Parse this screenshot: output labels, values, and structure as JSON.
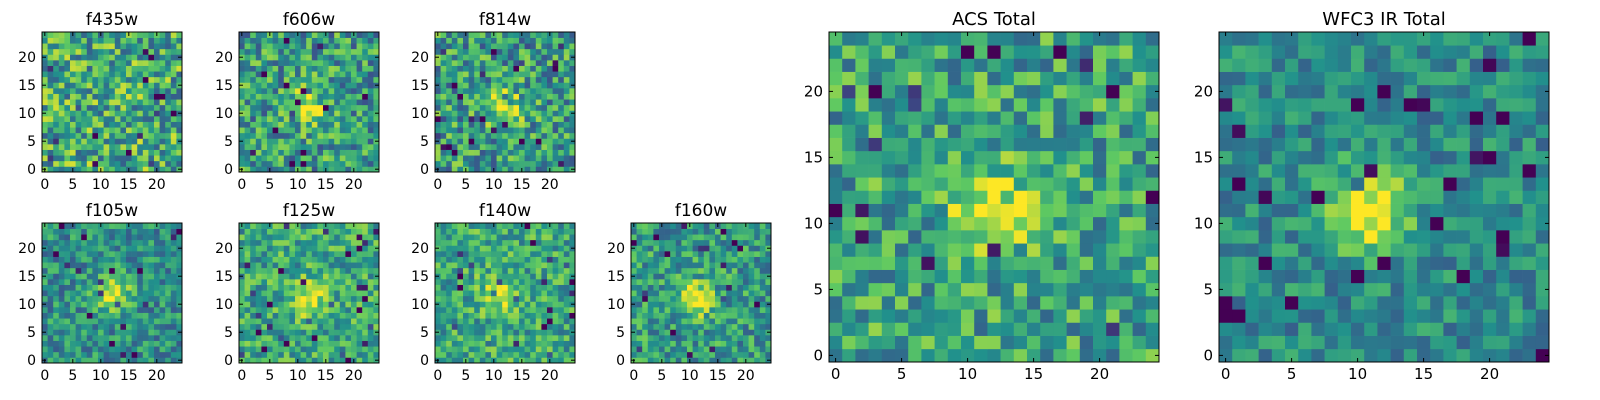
{
  "figure": {
    "colormap": "viridis",
    "colormap_stops": [
      "#440154",
      "#3b528b",
      "#21918c",
      "#5ec962",
      "#fde725"
    ]
  },
  "chart_data": [
    {
      "type": "heatmap",
      "title": "f435w",
      "grid_size": 25,
      "xlim": [
        -0.5,
        24.5
      ],
      "ylim": [
        -0.5,
        24.5
      ],
      "xticks": [
        0,
        5,
        10,
        15,
        20
      ],
      "yticks": [
        0,
        5,
        10,
        15,
        20
      ],
      "source_center": null,
      "source_strength": 0.0,
      "noise_level": 0.32,
      "base_level": 0.62,
      "seed": 435
    },
    {
      "type": "heatmap",
      "title": "f606w",
      "grid_size": 25,
      "xlim": [
        -0.5,
        24.5
      ],
      "ylim": [
        -0.5,
        24.5
      ],
      "xticks": [
        0,
        5,
        10,
        15,
        20
      ],
      "yticks": [
        0,
        5,
        10,
        15,
        20
      ],
      "source_center": [
        12,
        11
      ],
      "source_strength": 0.45,
      "noise_level": 0.3,
      "base_level": 0.55,
      "seed": 606
    },
    {
      "type": "heatmap",
      "title": "f814w",
      "grid_size": 25,
      "xlim": [
        -0.5,
        24.5
      ],
      "ylim": [
        -0.5,
        24.5
      ],
      "xticks": [
        0,
        5,
        10,
        15,
        20
      ],
      "yticks": [
        0,
        5,
        10,
        15,
        20
      ],
      "source_center": [
        12,
        11
      ],
      "source_strength": 0.45,
      "noise_level": 0.3,
      "base_level": 0.55,
      "seed": 814
    },
    {
      "type": "heatmap",
      "title": "f105w",
      "grid_size": 25,
      "xlim": [
        -0.5,
        24.5
      ],
      "ylim": [
        -0.5,
        24.5
      ],
      "xticks": [
        0,
        5,
        10,
        15,
        20
      ],
      "yticks": [
        0,
        5,
        10,
        15,
        20
      ],
      "source_center": [
        12,
        12
      ],
      "source_strength": 0.5,
      "noise_level": 0.22,
      "base_level": 0.5,
      "seed": 105
    },
    {
      "type": "heatmap",
      "title": "f125w",
      "grid_size": 25,
      "xlim": [
        -0.5,
        24.5
      ],
      "ylim": [
        -0.5,
        24.5
      ],
      "xticks": [
        0,
        5,
        10,
        15,
        20
      ],
      "yticks": [
        0,
        5,
        10,
        15,
        20
      ],
      "source_center": [
        12,
        11
      ],
      "source_strength": 0.35,
      "noise_level": 0.24,
      "base_level": 0.6,
      "seed": 125
    },
    {
      "type": "heatmap",
      "title": "f140w",
      "grid_size": 25,
      "xlim": [
        -0.5,
        24.5
      ],
      "ylim": [
        -0.5,
        24.5
      ],
      "xticks": [
        0,
        5,
        10,
        15,
        20
      ],
      "yticks": [
        0,
        5,
        10,
        15,
        20
      ],
      "source_center": [
        11,
        12
      ],
      "source_strength": 0.35,
      "noise_level": 0.24,
      "base_level": 0.6,
      "seed": 140
    },
    {
      "type": "heatmap",
      "title": "f160w",
      "grid_size": 25,
      "xlim": [
        -0.5,
        24.5
      ],
      "ylim": [
        -0.5,
        24.5
      ],
      "xticks": [
        0,
        5,
        10,
        15,
        20
      ],
      "yticks": [
        0,
        5,
        10,
        15,
        20
      ],
      "source_center": [
        11,
        11
      ],
      "source_strength": 0.45,
      "noise_level": 0.24,
      "base_level": 0.55,
      "seed": 160
    },
    {
      "type": "heatmap",
      "title": "ACS Total",
      "grid_size": 25,
      "xlim": [
        -0.5,
        24.5
      ],
      "ylim": [
        -0.5,
        24.5
      ],
      "xticks": [
        0,
        5,
        10,
        15,
        20
      ],
      "yticks": [
        0,
        5,
        10,
        15,
        20
      ],
      "source_center": [
        12,
        11
      ],
      "source_strength": 0.4,
      "noise_level": 0.26,
      "base_level": 0.58,
      "seed": 2001
    },
    {
      "type": "heatmap",
      "title": "WFC3 IR Total",
      "grid_size": 25,
      "xlim": [
        -0.5,
        24.5
      ],
      "ylim": [
        -0.5,
        24.5
      ],
      "xticks": [
        0,
        5,
        10,
        15,
        20
      ],
      "yticks": [
        0,
        5,
        10,
        15,
        20
      ],
      "source_center": [
        11,
        11
      ],
      "source_strength": 0.55,
      "noise_level": 0.18,
      "base_level": 0.48,
      "seed": 2002
    }
  ]
}
